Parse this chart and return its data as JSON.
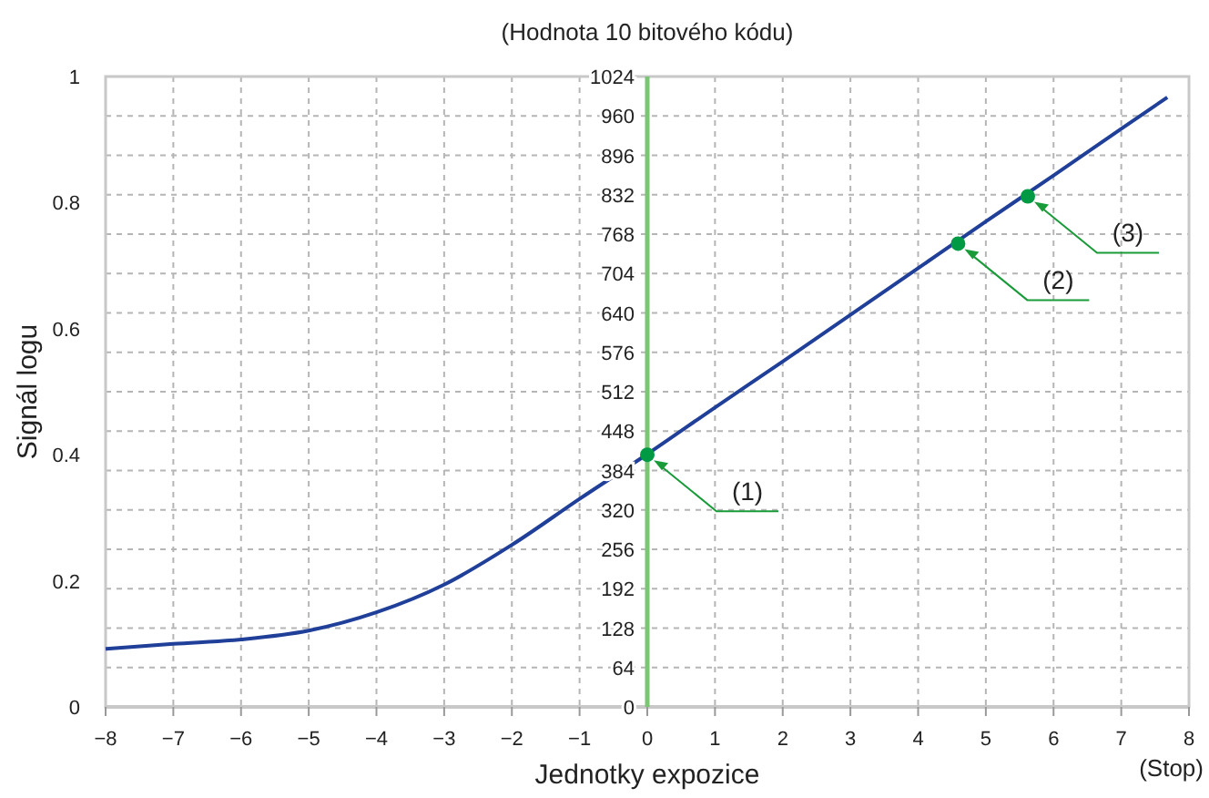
{
  "chart_data": {
    "type": "line",
    "y2label": "(Hodnota 10 bitového kódu)",
    "xlabel": "Jednotky expozice",
    "ylabel": "Signál logu",
    "annotations": [
      {
        "text": "(1)",
        "x": 0,
        "y": 0.4
      },
      {
        "text": "(2)",
        "x": 4.59,
        "y": 0.735
      },
      {
        "text": "(3)",
        "x": 5.62,
        "y": 0.81
      },
      "(Stop)"
    ],
    "series": [
      {
        "color": "#1f3f99",
        "x": [
          -8,
          -7,
          -6,
          -5,
          -4,
          -3,
          -2,
          -1,
          0,
          1,
          2,
          3,
          4,
          5,
          6,
          7,
          7.68
        ],
        "values": [
          0.092,
          0.1,
          0.107,
          0.121,
          0.15,
          0.194,
          0.257,
          0.33,
          0.401,
          0.475,
          0.548,
          0.622,
          0.696,
          0.77,
          0.843,
          0.917,
          0.967
        ]
      },
      {
        "type": "scatter",
        "marker": "circle",
        "color": "#009944",
        "x": [
          0,
          4.59,
          5.62
        ],
        "values": [
          0.4,
          0.735,
          0.81
        ]
      }
    ],
    "xlim": [
      -8,
      8
    ],
    "xticks": [
      {
        "value": -8,
        "label": "−8"
      },
      {
        "value": -7,
        "label": "−7"
      },
      {
        "value": -6,
        "label": "−6"
      },
      {
        "value": -5,
        "label": "−5"
      },
      {
        "value": -4,
        "label": "−4"
      },
      {
        "value": -3,
        "label": "−3"
      },
      {
        "value": -2,
        "label": "−2"
      },
      {
        "value": -1,
        "label": "−1"
      },
      0,
      1,
      2,
      3,
      4,
      5,
      6,
      7,
      8
    ],
    "ylim": [
      0,
      1
    ],
    "yticks": [
      0,
      0.2,
      0.4,
      0.6,
      0.8,
      1
    ],
    "y2lim": [
      0,
      1024
    ],
    "y2ticks": [
      0,
      64,
      128,
      192,
      256,
      320,
      384,
      448,
      512,
      576,
      640,
      704,
      768,
      832,
      896,
      960,
      1024
    ],
    "grid": true,
    "line_style": "solid"
  }
}
